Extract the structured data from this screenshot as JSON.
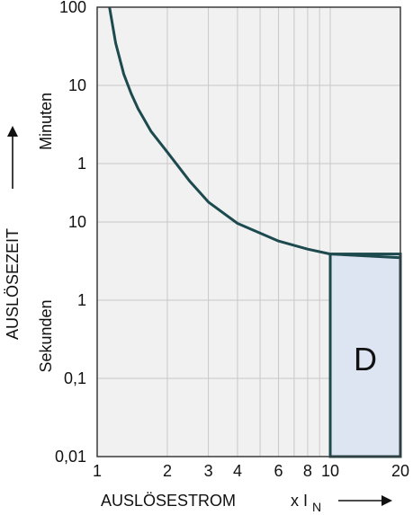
{
  "chart_data": {
    "type": "line",
    "xlabel": "AUSLÖSESTROM",
    "xlabel_unit": "x I",
    "xlabel_unit_sub": "N",
    "ylabel": "AUSLÖSEZEIT",
    "y_unit_minutes": "Minuten",
    "y_unit_seconds": "Sekunden",
    "x_scale": "log",
    "x_ticks": [
      "1",
      "2",
      "3",
      "4",
      "6",
      "8",
      "10",
      "20"
    ],
    "x_tick_values": [
      1,
      2,
      3,
      4,
      6,
      8,
      10,
      20
    ],
    "xlim": [
      1,
      20
    ],
    "y_scale": "log",
    "y_ticks_minutes": [
      "100",
      "10",
      "1"
    ],
    "y_ticks_seconds": [
      "10",
      "1",
      "0,1",
      "0,01"
    ],
    "grid": true,
    "series": [
      {
        "x": [
          1.13,
          1.2,
          1.3,
          1.4,
          1.5,
          1.7,
          2,
          2.5,
          3,
          4,
          5,
          6,
          8,
          10,
          20
        ],
        "y_seconds": [
          6000,
          2100,
          840,
          468,
          300,
          156,
          84,
          33,
          18,
          9.6,
          7.2,
          5.7,
          4.5,
          3.9,
          3.5
        ]
      }
    ],
    "region": {
      "label": "D",
      "x_range": [
        10,
        20
      ],
      "y_seconds_range": [
        0.01,
        3.9
      ],
      "fill": "#dde5f3"
    },
    "colors": {
      "plot_bg": "#f1f1f1",
      "grid": "#c8c8c8",
      "curve": "#1d4a4e",
      "frame": "#3a3a3a"
    }
  }
}
